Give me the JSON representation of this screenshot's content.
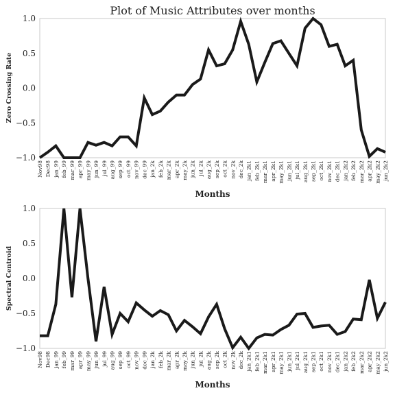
{
  "title": "Plot of Music Attributes over months",
  "chart_data": [
    {
      "type": "line",
      "title": "Plot of Music Attributes over months",
      "xlabel": "Months",
      "ylabel": "Zero Crossing Rate",
      "ylim": [
        -1.0,
        1.0
      ],
      "yticks": [
        "1.0",
        "0.5",
        "0.0",
        "−0.5",
        "−1.0"
      ],
      "grid": false,
      "line_color": "#1a1a1a",
      "categories": [
        "Nov98",
        "Dec98",
        "jan_99",
        "feb_99",
        "mar_99",
        "apr_99",
        "may_99",
        "jun_99",
        "jul_99",
        "aug_99",
        "sep_99",
        "oct_99",
        "nov_99",
        "dec_99",
        "jan_2k",
        "feb_2k",
        "mar_2k",
        "apr_2k",
        "may_2k",
        "jun_2k",
        "jul_2k",
        "aug_2k",
        "sep_2k",
        "oct_2k",
        "nov_2k",
        "dec_2k",
        "jan_2k1",
        "feb_2k1",
        "mar_2k1",
        "apr_2k1",
        "may_2k1",
        "jun_2k1",
        "jul_2k1",
        "aug_2k1",
        "sep_2k1",
        "oct_2k1",
        "nov_2k1",
        "dec_2k1",
        "jan_2k2",
        "feb_2k2",
        "mar_2k2",
        "apr_2k2",
        "may_2k2",
        "jun_2k2"
      ],
      "values": [
        -1.0,
        -0.92,
        -0.83,
        -1.0,
        -1.0,
        -1.0,
        -0.78,
        -0.82,
        -0.78,
        -0.83,
        -0.7,
        -0.7,
        -0.83,
        -0.14,
        -0.38,
        -0.33,
        -0.2,
        -0.1,
        -0.1,
        0.05,
        0.13,
        0.55,
        0.32,
        0.35,
        0.55,
        0.96,
        0.63,
        0.09,
        0.37,
        0.64,
        0.68,
        0.5,
        0.32,
        0.86,
        1.0,
        0.91,
        0.6,
        0.63,
        0.32,
        0.4,
        -0.6,
        -0.98,
        -0.87,
        -0.92
      ]
    },
    {
      "type": "line",
      "xlabel": "Months",
      "ylabel": "Spectral Centroid",
      "ylim": [
        -1.0,
        1.0
      ],
      "yticks": [
        "1.0",
        "0.5",
        "0.0",
        "−0.5",
        "−1.0"
      ],
      "grid": false,
      "line_color": "#1a1a1a",
      "categories": [
        "Nov98",
        "Dec98",
        "jan_99",
        "feb_99",
        "mar_99",
        "apr_99",
        "may_99",
        "jun_99",
        "jul_99",
        "aug_99",
        "sep_99",
        "oct_99",
        "nov_99",
        "dec_99",
        "jan_2k",
        "feb_2k",
        "mar_2k",
        "apr_2k",
        "may_2k",
        "jun_2k",
        "jul_2k",
        "aug_2k",
        "sep_2k",
        "oct_2k",
        "nov_2k",
        "dec_2k",
        "jan_2k1",
        "feb_2k1",
        "mar_2k1",
        "apr_2k1",
        "may_2k1",
        "jun_2k1",
        "jul_2k1",
        "aug_2k1",
        "sep_2k1",
        "oct_2k1",
        "nov_2k1",
        "dec_2k1",
        "jan_2k2",
        "feb_2k2",
        "mar_2k2",
        "apr_2k2",
        "may_2k2",
        "jun_2k2"
      ],
      "values": [
        -0.82,
        -0.82,
        -0.37,
        1.0,
        -0.27,
        1.0,
        0.0,
        -0.9,
        -0.12,
        -0.8,
        -0.5,
        -0.62,
        -0.35,
        -0.45,
        -0.54,
        -0.46,
        -0.52,
        -0.75,
        -0.6,
        -0.69,
        -0.79,
        -0.55,
        -0.37,
        -0.72,
        -0.99,
        -0.84,
        -1.0,
        -0.85,
        -0.8,
        -0.81,
        -0.73,
        -0.67,
        -0.51,
        -0.5,
        -0.7,
        -0.68,
        -0.67,
        -0.8,
        -0.76,
        -0.58,
        -0.59,
        -0.02,
        -0.57,
        -0.34
      ]
    }
  ]
}
